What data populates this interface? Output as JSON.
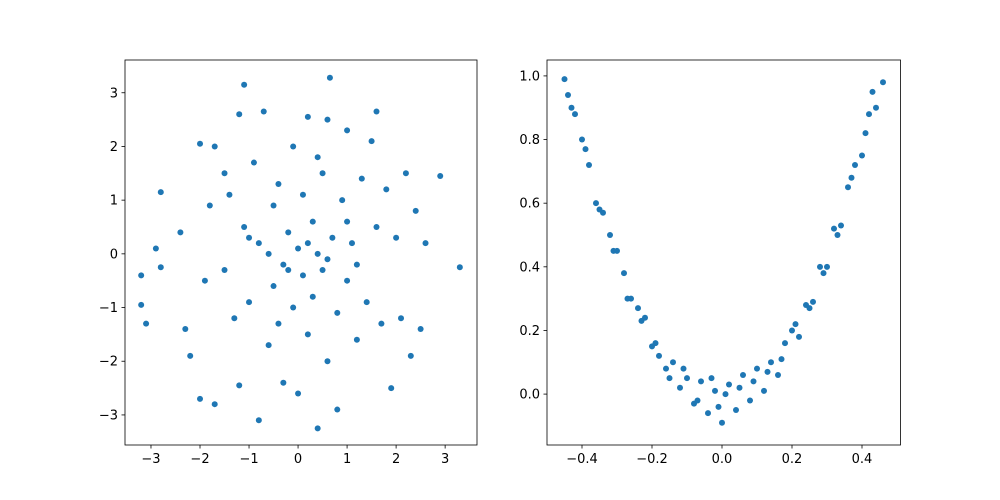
{
  "chart_data": [
    {
      "type": "scatter",
      "color": "#1f77b4",
      "x": [
        -3.2,
        -3.1,
        -3.2,
        -2.9,
        -2.8,
        -2.8,
        -2.4,
        -2.3,
        -2.2,
        -2.0,
        -2.0,
        -1.9,
        -1.8,
        -1.7,
        -1.7,
        -1.5,
        -1.4,
        -1.3,
        -1.2,
        -1.2,
        -1.1,
        -1.1,
        -1.0,
        -0.9,
        -0.8,
        -0.8,
        -0.7,
        -0.6,
        -0.5,
        -0.5,
        -0.4,
        -0.3,
        -0.3,
        -0.2,
        -0.1,
        -0.1,
        0.0,
        0.0,
        0.1,
        0.1,
        0.2,
        0.2,
        0.3,
        0.3,
        0.4,
        0.4,
        0.5,
        0.5,
        0.6,
        0.6,
        0.65,
        0.7,
        0.8,
        0.8,
        0.9,
        1.0,
        1.0,
        1.1,
        1.2,
        1.3,
        1.4,
        1.5,
        1.6,
        1.6,
        1.7,
        1.8,
        1.9,
        2.0,
        2.1,
        2.2,
        2.3,
        2.4,
        2.5,
        2.6,
        2.9,
        3.3,
        -0.6,
        -0.2,
        0.2,
        0.6,
        -1.0,
        1.0,
        -0.4,
        0.4,
        -1.5,
        1.2
      ],
      "y": [
        -0.4,
        -1.3,
        -0.95,
        0.1,
        1.15,
        -0.25,
        0.4,
        -1.4,
        -1.9,
        2.05,
        -2.7,
        -0.5,
        0.9,
        2.0,
        -2.8,
        -0.3,
        1.1,
        -1.2,
        2.6,
        -2.45,
        3.15,
        0.5,
        -0.9,
        1.7,
        -3.1,
        0.2,
        2.65,
        -1.7,
        0.9,
        -0.6,
        1.3,
        -0.2,
        -2.4,
        0.4,
        2.0,
        -1.0,
        0.1,
        -2.6,
        1.1,
        -0.4,
        2.55,
        -1.5,
        0.6,
        -0.8,
        -3.25,
        0.0,
        1.5,
        -0.3,
        2.5,
        -2.0,
        3.28,
        0.3,
        -1.1,
        -2.9,
        1.0,
        -0.5,
        2.3,
        0.2,
        -1.6,
        1.4,
        -0.9,
        2.1,
        2.65,
        0.5,
        -1.3,
        1.2,
        -2.5,
        0.3,
        -1.2,
        1.5,
        -1.9,
        0.8,
        -1.4,
        0.2,
        1.45,
        -0.25,
        0.0,
        -0.3,
        0.2,
        -0.1,
        0.3,
        0.6,
        -1.3,
        1.8,
        1.5,
        -0.2
      ],
      "xlim": [
        -3.53,
        3.65
      ],
      "ylim": [
        -3.56,
        3.61
      ],
      "xticks": [
        {
          "value": -3,
          "label": "−3"
        },
        {
          "value": -2,
          "label": "−2"
        },
        {
          "value": -1,
          "label": "−1"
        },
        0,
        1,
        2,
        3
      ],
      "yticks": [
        {
          "value": -3,
          "label": "−3"
        },
        {
          "value": -2,
          "label": "−2"
        },
        {
          "value": -1,
          "label": "−1"
        },
        0,
        1,
        2,
        3
      ]
    },
    {
      "type": "scatter",
      "color": "#1f77b4",
      "x": [
        -0.45,
        -0.44,
        -0.42,
        -0.4,
        -0.38,
        -0.36,
        -0.34,
        -0.32,
        -0.3,
        -0.28,
        -0.26,
        -0.24,
        -0.22,
        -0.2,
        -0.18,
        -0.16,
        -0.14,
        -0.12,
        -0.1,
        -0.08,
        -0.06,
        -0.04,
        -0.02,
        0.0,
        0.02,
        0.04,
        0.06,
        0.08,
        0.1,
        0.12,
        0.14,
        0.16,
        0.18,
        0.2,
        0.22,
        0.24,
        0.26,
        0.28,
        0.3,
        0.32,
        0.34,
        0.36,
        0.38,
        0.4,
        0.42,
        0.43,
        0.46,
        -0.43,
        -0.39,
        -0.35,
        -0.31,
        -0.27,
        -0.23,
        -0.19,
        -0.15,
        -0.11,
        -0.07,
        -0.03,
        -0.01,
        0.01,
        0.05,
        0.09,
        0.13,
        0.17,
        0.21,
        0.25,
        0.29,
        0.33,
        0.37,
        0.41,
        0.44
      ],
      "y": [
        0.99,
        0.94,
        0.88,
        0.8,
        0.72,
        0.6,
        0.57,
        0.5,
        0.45,
        0.38,
        0.3,
        0.27,
        0.24,
        0.15,
        0.12,
        0.08,
        0.1,
        0.02,
        0.05,
        -0.03,
        0.04,
        -0.06,
        0.01,
        -0.09,
        0.03,
        -0.05,
        0.06,
        -0.02,
        0.08,
        0.01,
        0.1,
        0.06,
        0.16,
        0.2,
        0.18,
        0.28,
        0.29,
        0.4,
        0.4,
        0.52,
        0.53,
        0.65,
        0.72,
        0.75,
        0.88,
        0.95,
        0.98,
        0.9,
        0.77,
        0.58,
        0.45,
        0.3,
        0.23,
        0.16,
        0.05,
        0.08,
        -0.02,
        0.05,
        -0.04,
        0.0,
        0.02,
        0.04,
        0.07,
        0.11,
        0.22,
        0.27,
        0.38,
        0.5,
        0.68,
        0.82,
        0.9
      ],
      "xlim": [
        -0.5,
        0.51
      ],
      "ylim": [
        -0.16,
        1.05
      ],
      "xticks": [
        {
          "value": -0.4,
          "label": "−0.4"
        },
        {
          "value": -0.2,
          "label": "−0.2"
        },
        {
          "value": 0,
          "label": "0.0"
        },
        0.2,
        0.4
      ],
      "yticks": [
        {
          "value": 0,
          "label": "0.0"
        },
        0.2,
        0.4,
        0.6,
        0.8,
        {
          "value": 1,
          "label": "1.0"
        }
      ]
    }
  ]
}
